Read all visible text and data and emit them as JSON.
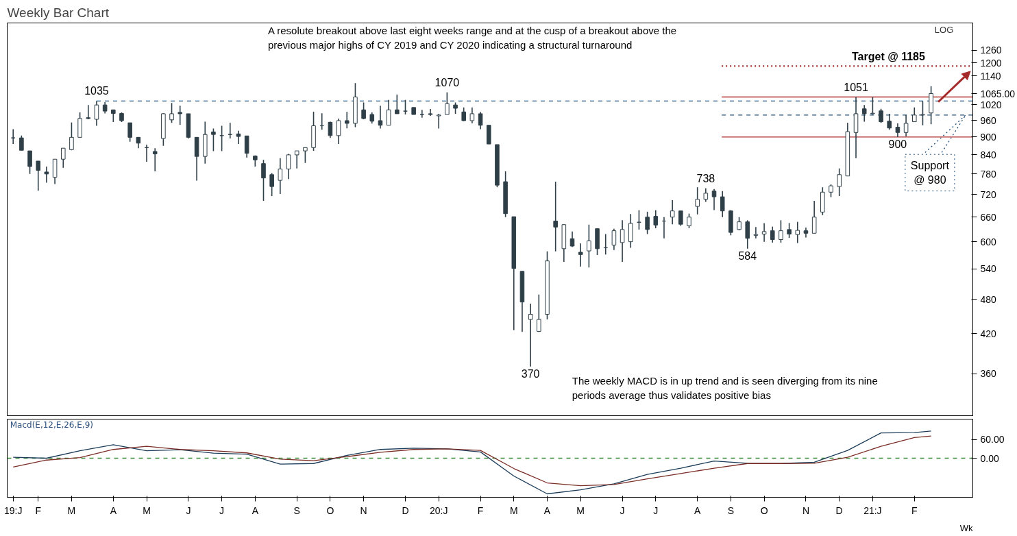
{
  "chart_data": [
    {
      "type": "candlestick",
      "title": "Weekly Bar Chart",
      "color": "#2f3f48",
      "log": true,
      "tick_labels": "y",
      "xlim": [
        "2019-01-06",
        "2021-03-26"
      ],
      "ylim": [
        305,
        1400
      ],
      "yticks": [
        360,
        420,
        480,
        540,
        600,
        660,
        720,
        780,
        840,
        900,
        960,
        1020,
        {
          "value": 1065,
          "label": "1065.00"
        },
        1140,
        1200,
        1260
      ],
      "x": [
        "2019-01-11",
        "2019-01-18",
        "2019-01-25",
        "2019-02-01",
        "2019-02-08",
        "2019-02-15",
        "2019-02-22",
        "2019-03-01",
        "2019-03-08",
        "2019-03-15",
        "2019-03-22",
        "2019-03-29",
        "2019-04-05",
        "2019-04-12",
        "2019-04-19",
        "2019-04-26",
        "2019-05-03",
        "2019-05-10",
        "2019-05-17",
        "2019-05-24",
        "2019-05-31",
        "2019-06-07",
        "2019-06-14",
        "2019-06-21",
        "2019-06-28",
        "2019-07-05",
        "2019-07-12",
        "2019-07-19",
        "2019-07-26",
        "2019-08-02",
        "2019-08-09",
        "2019-08-16",
        "2019-08-23",
        "2019-08-30",
        "2019-09-06",
        "2019-09-13",
        "2019-09-20",
        "2019-09-27",
        "2019-10-04",
        "2019-10-11",
        "2019-10-18",
        "2019-10-25",
        "2019-11-01",
        "2019-11-08",
        "2019-11-15",
        "2019-11-22",
        "2019-11-29",
        "2019-12-06",
        "2019-12-13",
        "2019-12-20",
        "2019-12-27",
        "2020-01-03",
        "2020-01-10",
        "2020-01-17",
        "2020-01-24",
        "2020-01-31",
        "2020-02-07",
        "2020-02-14",
        "2020-02-21",
        "2020-02-28",
        "2020-03-06",
        "2020-03-13",
        "2020-03-20",
        "2020-03-27",
        "2020-04-03",
        "2020-04-10",
        "2020-04-17",
        "2020-04-24",
        "2020-05-01",
        "2020-05-08",
        "2020-05-15",
        "2020-05-22",
        "2020-05-29",
        "2020-06-05",
        "2020-06-12",
        "2020-06-19",
        "2020-06-26",
        "2020-07-03",
        "2020-07-10",
        "2020-07-17",
        "2020-07-24",
        "2020-07-31",
        "2020-08-07",
        "2020-08-14",
        "2020-08-21",
        "2020-08-28",
        "2020-09-04",
        "2020-09-11",
        "2020-09-18",
        "2020-09-25",
        "2020-10-02",
        "2020-10-09",
        "2020-10-16",
        "2020-10-23",
        "2020-10-30",
        "2020-11-06",
        "2020-11-13",
        "2020-11-20",
        "2020-11-27",
        "2020-12-04",
        "2020-12-11",
        "2020-12-18",
        "2020-12-25",
        "2021-01-01",
        "2021-01-08",
        "2021-01-15",
        "2021-01-22",
        "2021-01-29",
        "2021-02-05",
        "2021-02-12",
        "2021-02-19"
      ],
      "ohlc": [
        [
          897,
          928,
          876,
          897
        ],
        [
          897,
          905,
          855,
          855
        ],
        [
          853,
          853,
          780,
          803
        ],
        [
          820,
          820,
          731,
          791
        ],
        [
          786,
          803,
          754,
          780
        ],
        [
          770,
          826,
          750,
          826
        ],
        [
          826,
          862,
          799,
          862
        ],
        [
          857,
          952,
          855,
          899
        ],
        [
          899,
          990,
          899,
          967
        ],
        [
          970,
          1019,
          964,
          967
        ],
        [
          964,
          1035,
          940,
          1019
        ],
        [
          1019,
          1030,
          986,
          995
        ],
        [
          1000,
          1000,
          954,
          986
        ],
        [
          986,
          990,
          954,
          959
        ],
        [
          951,
          951,
          884,
          899
        ],
        [
          899,
          899,
          862,
          879
        ],
        [
          864,
          874,
          818,
          864
        ],
        [
          851,
          862,
          788,
          843
        ],
        [
          895,
          987,
          870,
          985
        ],
        [
          962,
          1027,
          951,
          985
        ],
        [
          990,
          1016,
          944,
          985
        ],
        [
          985,
          985,
          895,
          899
        ],
        [
          899,
          899,
          760,
          835
        ],
        [
          835,
          955,
          812,
          909
        ],
        [
          918,
          930,
          852,
          909
        ],
        [
          905,
          940,
          852,
          905
        ],
        [
          909,
          951,
          895,
          909
        ],
        [
          911,
          922,
          876,
          902
        ],
        [
          904,
          904,
          831,
          845
        ],
        [
          836,
          838,
          803,
          824
        ],
        [
          812,
          824,
          703,
          768
        ],
        [
          778,
          783,
          716,
          743
        ],
        [
          761,
          829,
          722,
          795
        ],
        [
          795,
          843,
          765,
          840
        ],
        [
          840,
          853,
          797,
          853
        ],
        [
          853,
          864,
          814,
          864
        ],
        [
          864,
          993,
          853,
          940
        ],
        [
          940,
          987,
          926,
          940
        ],
        [
          953,
          955,
          897,
          905
        ],
        [
          905,
          967,
          876,
          959
        ],
        [
          959,
          992,
          931,
          949
        ],
        [
          949,
          1109,
          935,
          1051
        ],
        [
          1000,
          1029,
          964,
          967
        ],
        [
          982,
          990,
          948,
          957
        ],
        [
          959,
          1016,
          930,
          942
        ],
        [
          942,
          1039,
          942,
          1000
        ],
        [
          1000,
          1061,
          985,
          985
        ],
        [
          995,
          1039,
          982,
          995
        ],
        [
          1009,
          1009,
          982,
          982
        ],
        [
          982,
          1000,
          970,
          982
        ],
        [
          985,
          1003,
          977,
          982
        ],
        [
          977,
          985,
          930,
          980
        ],
        [
          982,
          1070,
          982,
          1024
        ],
        [
          1019,
          1029,
          985,
          1006
        ],
        [
          992,
          1009,
          957,
          959
        ],
        [
          959,
          1009,
          949,
          985
        ],
        [
          985,
          992,
          928,
          942
        ],
        [
          942,
          942,
          876,
          876
        ],
        [
          874,
          874,
          741,
          747
        ],
        [
          757,
          788,
          660,
          669
        ],
        [
          661,
          661,
          426,
          541
        ],
        [
          535,
          535,
          423,
          475
        ],
        [
          444,
          472,
          370,
          453
        ],
        [
          424,
          489,
          423,
          444
        ],
        [
          453,
          578,
          444,
          557
        ],
        [
          650,
          757,
          578,
          635
        ],
        [
          584,
          642,
          555,
          641
        ],
        [
          607,
          624,
          588,
          590
        ],
        [
          576,
          596,
          545,
          571
        ],
        [
          579,
          641,
          543,
          602
        ],
        [
          631,
          631,
          570,
          584
        ],
        [
          586,
          618,
          571,
          586
        ],
        [
          592,
          631,
          581,
          626
        ],
        [
          598,
          652,
          555,
          629
        ],
        [
          600,
          668,
          586,
          644
        ],
        [
          647,
          678,
          629,
          647
        ],
        [
          660,
          674,
          618,
          629
        ],
        [
          662,
          678,
          632,
          640
        ],
        [
          650,
          660,
          608,
          650
        ],
        [
          660,
          705,
          642,
          676
        ],
        [
          676,
          676,
          638,
          642
        ],
        [
          638,
          669,
          632,
          660
        ],
        [
          688,
          741,
          667,
          707
        ],
        [
          707,
          738,
          700,
          724
        ],
        [
          730,
          736,
          678,
          714
        ],
        [
          714,
          730,
          660,
          676
        ],
        [
          676,
          678,
          615,
          622
        ],
        [
          629,
          660,
          627,
          648
        ],
        [
          648,
          652,
          584,
          608
        ],
        [
          615,
          635,
          608,
          617
        ],
        [
          618,
          645,
          600,
          624
        ],
        [
          626,
          636,
          598,
          605
        ],
        [
          605,
          652,
          598,
          626
        ],
        [
          629,
          645,
          609,
          618
        ],
        [
          617,
          648,
          597,
          627
        ],
        [
          626,
          634,
          610,
          620
        ],
        [
          620,
          703,
          620,
          660
        ],
        [
          673,
          741,
          665,
          727
        ],
        [
          727,
          749,
          713,
          745
        ],
        [
          743,
          797,
          716,
          778
        ],
        [
          774,
          951,
          774,
          919
        ],
        [
          916,
          1051,
          829,
          985
        ],
        [
          1004,
          1019,
          955,
          985
        ],
        [
          985,
          1051,
          982,
          987
        ],
        [
          996,
          1004,
          951,
          955
        ],
        [
          957,
          985,
          926,
          932
        ],
        [
          935,
          949,
          900,
          916
        ],
        [
          916,
          980,
          902,
          949
        ],
        [
          955,
          1009,
          955,
          980
        ],
        [
          980,
          1033,
          942,
          982
        ],
        [
          988,
          1095,
          946,
          1065
        ]
      ],
      "ref_lines": [
        {
          "axis": "y",
          "value": 1035,
          "color": "#1f4e79",
          "line_style": "dashed"
        },
        {
          "axis": "y",
          "value": 1185,
          "color": "#a52a2a",
          "line_style": "dotted",
          "label": "Target @ 1185"
        },
        {
          "axis": "y",
          "value": 980,
          "color": "#1f4e79",
          "line_style": "dashed",
          "label": "Support @ 980"
        },
        {
          "axis": "y",
          "value": 1051,
          "color": "#b03030",
          "line_style": "solid"
        },
        {
          "axis": "y",
          "value": 900,
          "color": "#b03030",
          "line_style": "solid"
        }
      ],
      "annotations": [
        "A resolute breakout above last eight weeks range and at the cusp of a breakout above the previous major highs of CY 2019 and CY 2020 indicating a structural turnaround",
        "The weekly MACD is in up trend and is seen diverging from its nine periods average thus validates positive bias",
        "LOG",
        {
          "text": "1035",
          "x": "2019-03-22",
          "y": 1035
        },
        {
          "text": "1070",
          "x": "2020-01-10",
          "y": 1070
        },
        {
          "text": "370",
          "x": "2020-03-20",
          "y": 370
        },
        {
          "text": "738",
          "x": "2020-08-14",
          "y": 738
        },
        {
          "text": "584",
          "x": "2020-09-18",
          "y": 584
        },
        {
          "text": "1051",
          "x": "2020-12-18",
          "y": 1051
        },
        {
          "text": "900",
          "x": "2021-01-22",
          "y": 900
        }
      ]
    },
    {
      "type": "line",
      "title": "Macd(E,12,E,26,E,9)",
      "xlabel": "Wk",
      "xlim": [
        "2019-01-06",
        "2021-03-26"
      ],
      "ylim": [
        -125,
        125
      ],
      "yticks": [
        {
          "value": 0,
          "label": "0.00"
        },
        {
          "value": 60,
          "label": "60.00"
        }
      ],
      "xticks": [
        {
          "value": "2019-01-11",
          "label": "19:J"
        },
        {
          "value": "2019-02-01",
          "label": "F"
        },
        {
          "value": "2019-03-01",
          "label": "M"
        },
        {
          "value": "2019-04-05",
          "label": "A"
        },
        {
          "value": "2019-05-03",
          "label": "M"
        },
        {
          "value": "2019-06-07",
          "label": "J"
        },
        {
          "value": "2019-07-05",
          "label": "J"
        },
        {
          "value": "2019-08-02",
          "label": "A"
        },
        {
          "value": "2019-09-06",
          "label": "S"
        },
        {
          "value": "2019-10-04",
          "label": "O"
        },
        {
          "value": "2019-11-01",
          "label": "N"
        },
        {
          "value": "2019-12-06",
          "label": "D"
        },
        {
          "value": "2020-01-03",
          "label": "20:J"
        },
        {
          "value": "2020-02-07",
          "label": "F"
        },
        {
          "value": "2020-03-06",
          "label": "M"
        },
        {
          "value": "2020-04-03",
          "label": "A"
        },
        {
          "value": "2020-05-01",
          "label": "M"
        },
        {
          "value": "2020-06-05",
          "label": "J"
        },
        {
          "value": "2020-07-03",
          "label": "J"
        },
        {
          "value": "2020-08-07",
          "label": "A"
        },
        {
          "value": "2020-09-04",
          "label": "S"
        },
        {
          "value": "2020-10-02",
          "label": "O"
        },
        {
          "value": "2020-11-06",
          "label": "N"
        },
        {
          "value": "2020-12-04",
          "label": "D"
        },
        {
          "value": "2021-01-01",
          "label": "21:J"
        },
        {
          "value": "2021-02-05",
          "label": "F"
        }
      ],
      "ref_lines": [
        {
          "axis": "y",
          "value": 0,
          "color": "#3a8a3a",
          "line_style": "dashed"
        }
      ],
      "series": [
        {
          "color": "#1c3d5a",
          "x": [
            "2019-01-11",
            "2019-02-08",
            "2019-03-08",
            "2019-04-05",
            "2019-05-03",
            "2019-05-31",
            "2019-06-28",
            "2019-07-26",
            "2019-08-23",
            "2019-09-20",
            "2019-10-18",
            "2019-11-15",
            "2019-12-13",
            "2020-01-10",
            "2020-02-07",
            "2020-03-06",
            "2020-04-03",
            "2020-05-01",
            "2020-05-29",
            "2020-06-26",
            "2020-07-24",
            "2020-08-21",
            "2020-09-18",
            "2020-10-16",
            "2020-11-13",
            "2020-12-11",
            "2021-01-08",
            "2021-02-05",
            "2021-02-19"
          ],
          "values": [
            3,
            0,
            24,
            43,
            24,
            27,
            16,
            13,
            -19,
            -17,
            9,
            28,
            32,
            30,
            20,
            -57,
            -114,
            -101,
            -82,
            -52,
            -32,
            -9,
            -16,
            -17,
            -13,
            25,
            81,
            82,
            87
          ]
        },
        {
          "color": "#7b2d26",
          "x": [
            "2019-01-11",
            "2019-02-08",
            "2019-03-08",
            "2019-04-05",
            "2019-05-03",
            "2019-05-31",
            "2019-06-28",
            "2019-07-26",
            "2019-08-23",
            "2019-09-20",
            "2019-10-18",
            "2019-11-15",
            "2019-12-13",
            "2020-01-10",
            "2020-02-07",
            "2020-03-06",
            "2020-04-03",
            "2020-05-01",
            "2020-05-29",
            "2020-06-26",
            "2020-07-24",
            "2020-08-21",
            "2020-09-18",
            "2020-10-16",
            "2020-11-13",
            "2020-12-11",
            "2021-01-08",
            "2021-02-05",
            "2021-02-19"
          ],
          "values": [
            -28,
            -6,
            2,
            28,
            38,
            28,
            24,
            17,
            -3,
            -8,
            5,
            19,
            28,
            30,
            25,
            -33,
            -79,
            -88,
            -84,
            -66,
            -49,
            -32,
            -17,
            -17,
            -16,
            3,
            38,
            66,
            71
          ]
        }
      ]
    }
  ]
}
